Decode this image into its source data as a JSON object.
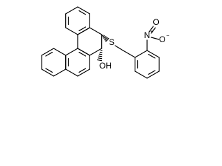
{
  "atoms": {
    "sulfur": "S",
    "hydroxyl": "OH",
    "nitrogen": "N",
    "nitrogen_charge": "+",
    "oxygen_double": "O",
    "oxygen_single": "O",
    "oxygen_charge": "−"
  }
}
